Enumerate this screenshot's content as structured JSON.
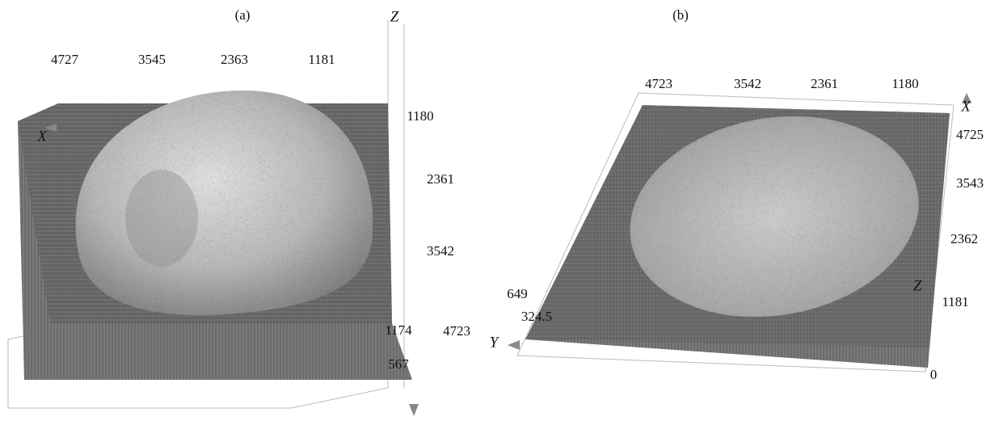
{
  "panels": [
    {
      "label": "(a)",
      "axis_z": "Z",
      "axis_x": "X",
      "top_ticks": [
        "4727",
        "3545",
        "2363",
        "1181"
      ],
      "right_ticks": [
        "1180",
        "2361",
        "3542",
        "4723"
      ],
      "height_ticks": [
        "1174",
        "567"
      ]
    },
    {
      "label": "(b)",
      "axis_x": "X",
      "axis_y": "Y",
      "axis_z": "Z",
      "top_ticks": [
        "4723",
        "3542",
        "2361",
        "1180"
      ],
      "right_ticks": [
        "4725",
        "3543",
        "2362",
        "1181",
        "0"
      ],
      "height_ticks": [
        "649",
        "324.5"
      ]
    }
  ]
}
